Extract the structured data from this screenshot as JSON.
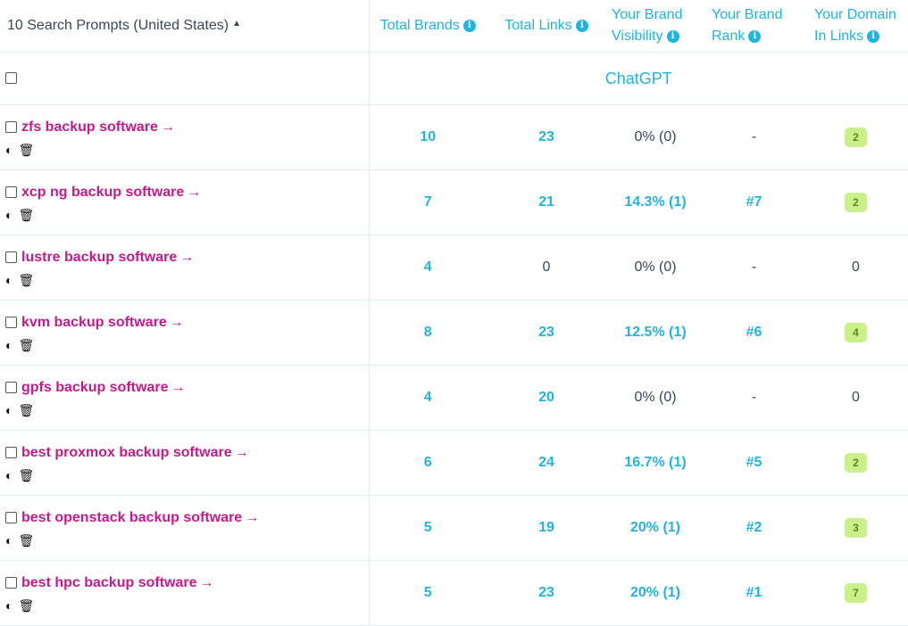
{
  "header": {
    "prompts_label": "10 Search Prompts (United States)",
    "sort_icon": "▲",
    "total_brands": "Total Brands",
    "total_links": "Total Links",
    "brand_visibility": [
      "Your Brand",
      "Visibility"
    ],
    "brand_rank": [
      "Your Brand",
      "Rank"
    ],
    "domain_in_links": [
      "Your Domain",
      "In Links"
    ],
    "info_icon": "i"
  },
  "engine_label": "ChatGPT",
  "arrow": "→",
  "rows": [
    {
      "prompt": "zfs backup software",
      "brands": "10",
      "links": "23",
      "visibility": "0% (0)",
      "rank": "-",
      "domain": "2",
      "domain_badge": true
    },
    {
      "prompt": "xcp ng backup software",
      "brands": "7",
      "links": "21",
      "visibility": "14.3% (1)",
      "rank": "#7",
      "domain": "2",
      "domain_badge": true
    },
    {
      "prompt": "lustre backup software",
      "brands": "4",
      "links": "0",
      "visibility": "0% (0)",
      "rank": "-",
      "domain": "0",
      "domain_badge": false
    },
    {
      "prompt": "kvm backup software",
      "brands": "8",
      "links": "23",
      "visibility": "12.5% (1)",
      "rank": "#6",
      "domain": "4",
      "domain_badge": true
    },
    {
      "prompt": "gpfs backup software",
      "brands": "4",
      "links": "20",
      "visibility": "0% (0)",
      "rank": "-",
      "domain": "0",
      "domain_badge": false
    },
    {
      "prompt": "best proxmox backup software",
      "brands": "6",
      "links": "24",
      "visibility": "16.7% (1)",
      "rank": "#5",
      "domain": "2",
      "domain_badge": true
    },
    {
      "prompt": "best openstack backup software",
      "brands": "5",
      "links": "19",
      "visibility": "20% (1)",
      "rank": "#2",
      "domain": "3",
      "domain_badge": true
    },
    {
      "prompt": "best hpc backup software",
      "brands": "5",
      "links": "23",
      "visibility": "20% (1)",
      "rank": "#1",
      "domain": "7",
      "domain_badge": true
    }
  ]
}
